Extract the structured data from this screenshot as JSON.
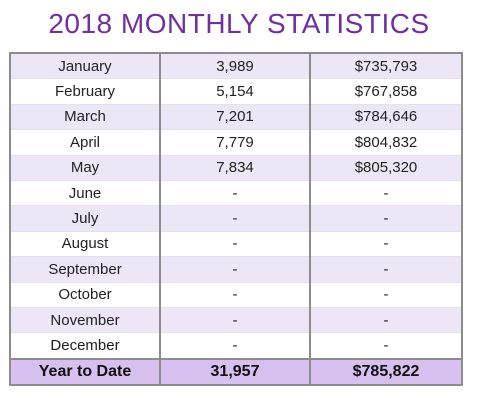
{
  "header": {
    "title": "2018 MONTHLY STATISTICS"
  },
  "table": {
    "rows": [
      [
        "January",
        "3,989",
        "$735,793"
      ],
      [
        "February",
        "5,154",
        "$767,858"
      ],
      [
        "March",
        "7,201",
        "$784,646"
      ],
      [
        "April",
        "7,779",
        "$804,832"
      ],
      [
        "May",
        "7,834",
        "$805,320"
      ],
      [
        "June",
        "-",
        "-"
      ],
      [
        "July",
        "-",
        "-"
      ],
      [
        "August",
        "-",
        "-"
      ],
      [
        "September",
        "-",
        "-"
      ],
      [
        "October",
        "-",
        "-"
      ],
      [
        "November",
        "-",
        "-"
      ],
      [
        "December",
        "-",
        "-"
      ]
    ],
    "total": [
      "Year to Date",
      "31,957",
      "$785,822"
    ]
  }
}
